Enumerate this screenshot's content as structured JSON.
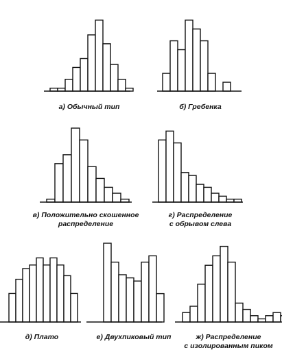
{
  "colors": {
    "bar_stroke": "#111111",
    "bar_fill": "#ffffff",
    "axis": "#111111"
  },
  "chart_data": [
    {
      "type": "bar",
      "caption": "а) Обычный тип",
      "values": [
        1,
        1,
        4,
        8,
        11,
        19,
        24,
        16,
        9,
        4,
        1
      ],
      "ylim": [
        0,
        25
      ],
      "grid": false
    },
    {
      "type": "bar",
      "caption": "б) Гребенка",
      "values": [
        6,
        17,
        14,
        24,
        21,
        17,
        6,
        0,
        3
      ],
      "ylim": [
        0,
        25
      ],
      "grid": false
    },
    {
      "type": "bar",
      "caption_lines": [
        "в) Положительно скошенное",
        "распределение"
      ],
      "values": [
        1,
        13,
        16,
        25,
        21,
        12,
        8,
        5,
        3,
        1
      ],
      "ylim": [
        0,
        25
      ],
      "grid": false
    },
    {
      "type": "bar",
      "caption_lines": [
        "г) Распределение",
        "с обрывом слева"
      ],
      "values": [
        21,
        24,
        20,
        10,
        9,
        6,
        5,
        3,
        2,
        1,
        1
      ],
      "ylim": [
        0,
        25
      ],
      "grid": false
    },
    {
      "type": "bar",
      "caption": "д) Плато",
      "values": [
        8,
        12,
        15,
        16,
        18,
        16,
        18,
        16,
        13,
        8
      ],
      "ylim": [
        0,
        25
      ],
      "grid": false
    },
    {
      "type": "bar",
      "caption": "е) Двухпиковый тип",
      "values": [
        25,
        19,
        15,
        14,
        13,
        19,
        21,
        9
      ],
      "ylim": [
        0,
        25
      ],
      "grid": false
    },
    {
      "type": "bar",
      "caption_lines": [
        "ж) Распределение",
        "с изолированным пиком"
      ],
      "values": [
        3,
        5,
        12,
        18,
        21,
        24,
        19,
        6,
        4,
        2,
        1,
        2,
        3,
        2
      ],
      "ylim": [
        0,
        25
      ],
      "grid": false
    }
  ]
}
